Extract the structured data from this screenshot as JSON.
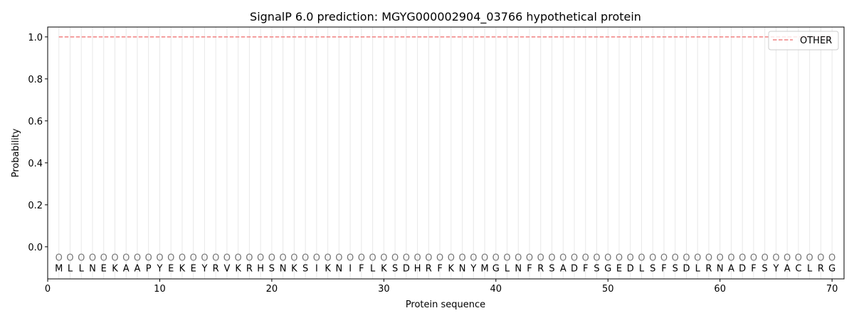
{
  "chart_data": {
    "type": "line",
    "title": "SignalP 6.0 prediction: MGYG000002904_03766 hypothetical protein",
    "xlabel": "Protein sequence",
    "ylabel": "Probability",
    "xlim": [
      0,
      71.07
    ],
    "ylim": [
      -0.153,
      1.047
    ],
    "xticks": [
      0,
      10,
      20,
      30,
      40,
      50,
      60,
      70
    ],
    "yticks": [
      0.0,
      0.2,
      0.4,
      0.6,
      0.8,
      1.0
    ],
    "xtick_labels": [
      "0",
      "10",
      "20",
      "30",
      "40",
      "50",
      "60",
      "70"
    ],
    "ytick_labels": [
      "0.0",
      "0.2",
      "0.4",
      "0.6",
      "0.8",
      "1.0"
    ],
    "grid": "vertical lines at each residue",
    "legend_placement": "top-right",
    "sequence": "MLLNEKAAPYEKEYRVKRHSNKSIKNIFLKSDHRFKNYMGLNFRSADFSGEDLSFSDLRNADFSYACLRG",
    "predicted_labels": "OOOOOOOOOOOOOOOOOOOOOOOOOOOOOOOOOOOOOOOOOOOOOOOOOOOOOOOOOOOOOOOOOOOOOO",
    "series": [
      {
        "name": "OTHER",
        "color": "#f08080",
        "style": "dashed",
        "x_start": 1,
        "x_end": 70,
        "value": 1.0
      }
    ]
  }
}
